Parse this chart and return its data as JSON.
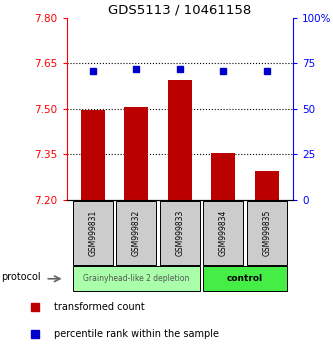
{
  "title": "GDS5113 / 10461158",
  "samples": [
    "GSM999831",
    "GSM999832",
    "GSM999833",
    "GSM999834",
    "GSM999835"
  ],
  "bar_values": [
    7.495,
    7.505,
    7.595,
    7.355,
    7.295
  ],
  "bar_base": 7.2,
  "percentile_values": [
    71.0,
    72.0,
    72.0,
    70.5,
    70.5
  ],
  "ylim_left": [
    7.2,
    7.8
  ],
  "ylim_right": [
    0,
    100
  ],
  "yticks_left": [
    7.2,
    7.35,
    7.5,
    7.65,
    7.8
  ],
  "yticks_right": [
    0,
    25,
    50,
    75,
    100
  ],
  "hlines": [
    7.35,
    7.5,
    7.65
  ],
  "bar_color": "#bb0000",
  "dot_color": "#0000cc",
  "group1_label": "Grainyhead-like 2 depletion",
  "group2_label": "control",
  "group1_color": "#aaffaa",
  "group2_color": "#44ee44",
  "protocol_label": "protocol",
  "legend_bar_label": "transformed count",
  "legend_dot_label": "percentile rank within the sample",
  "group1_samples": [
    0,
    1,
    2
  ],
  "group2_samples": [
    3,
    4
  ],
  "figsize": [
    3.33,
    3.54
  ],
  "dpi": 100
}
